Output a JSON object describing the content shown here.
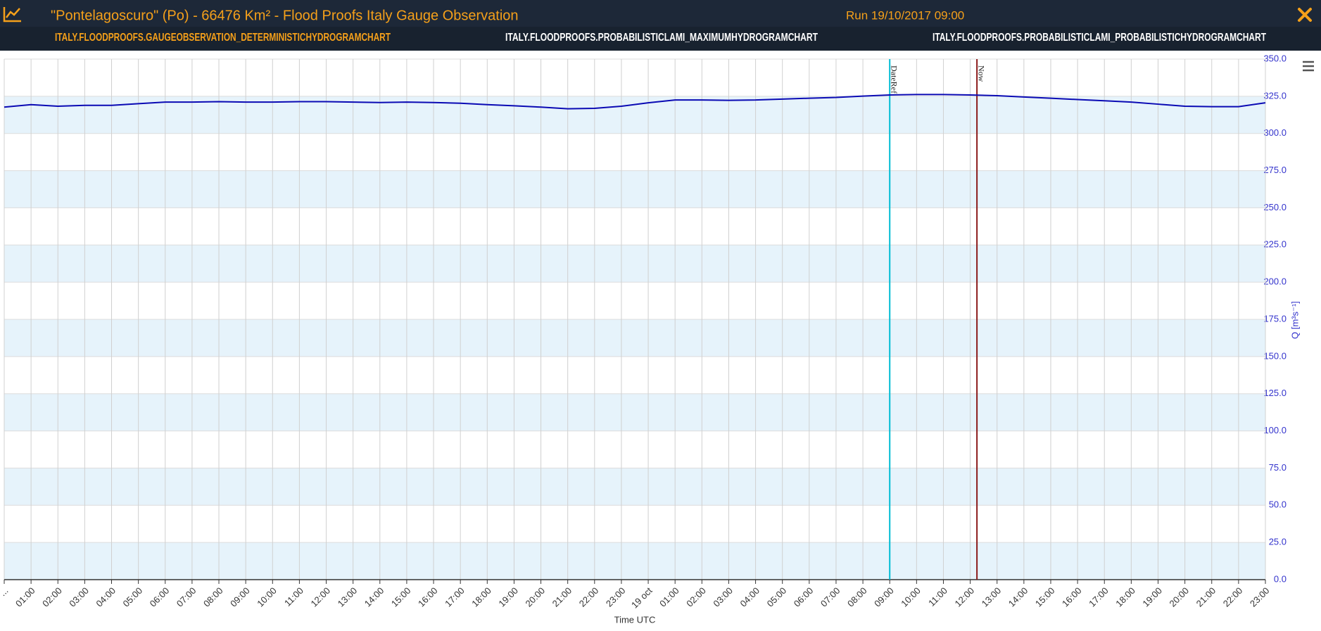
{
  "header": {
    "title": "\"Pontelagoscuro\" (Po) - 66476 Km² - Flood Proofs Italy Gauge Observation",
    "run": "Run 19/10/2017 09:00",
    "tabs": [
      "ITALY.FLOODPROOFS.GAUGEOBSERVATION_DETERMINISTICHYDROGRAMCHART",
      "ITALY.FLOODPROOFS.PROBABILISTICLAMI_MAXIMUMHYDROGRAMCHART",
      "ITALY.FLOODPROOFS.PROBABILISTICLAMI_PROBABILISTICHYDROGRAMCHART"
    ]
  },
  "chart_data": {
    "type": "line",
    "x_label": "Time UTC",
    "y_label": "Q [m³s⁻¹]",
    "categories": [
      "...",
      "01:00",
      "02:00",
      "03:00",
      "04:00",
      "05:00",
      "06:00",
      "07:00",
      "08:00",
      "09:00",
      "10:00",
      "11:00",
      "12:00",
      "13:00",
      "14:00",
      "15:00",
      "16:00",
      "17:00",
      "18:00",
      "19:00",
      "20:00",
      "21:00",
      "22:00",
      "23:00",
      "19 oct",
      "01:00",
      "02:00",
      "03:00",
      "04:00",
      "05:00",
      "06:00",
      "07:00",
      "08:00",
      "09:00",
      "10:00",
      "11:00",
      "12:00",
      "13:00",
      "14:00",
      "15:00",
      "16:00",
      "17:00",
      "18:00",
      "19:00",
      "20:00",
      "21:00",
      "22:00",
      "23:00"
    ],
    "values": [
      317.7,
      319.4,
      318.3,
      318.9,
      318.9,
      320.0,
      321.1,
      321.1,
      321.4,
      321.1,
      321.1,
      321.4,
      321.4,
      321.1,
      320.8,
      321.1,
      320.8,
      320.3,
      319.4,
      318.6,
      317.7,
      316.6,
      316.9,
      318.3,
      320.6,
      322.5,
      322.5,
      322.3,
      322.5,
      323.1,
      323.7,
      324.2,
      325.1,
      325.9,
      326.2,
      326.2,
      325.9,
      325.4,
      324.5,
      323.7,
      322.8,
      322.0,
      321.1,
      319.7,
      318.3,
      318.0,
      318.0,
      320.6
    ],
    "color": "#0a0ab4",
    "ylim": [
      0,
      350
    ],
    "yticks": [
      {
        "value": 0,
        "label": "0.0"
      },
      {
        "value": 25,
        "label": "25.0"
      },
      {
        "value": 50,
        "label": "50.0"
      },
      {
        "value": 75,
        "label": "75.0"
      },
      {
        "value": 100,
        "label": "100.0"
      },
      {
        "value": 125,
        "label": "125.0"
      },
      {
        "value": 150,
        "label": "150.0"
      },
      {
        "value": 175,
        "label": "175.0"
      },
      {
        "value": 200,
        "label": "200.0"
      },
      {
        "value": 225,
        "label": "225.0"
      },
      {
        "value": 250,
        "label": "250.0"
      },
      {
        "value": 275,
        "label": "275.0"
      },
      {
        "value": 300,
        "label": "300.0"
      },
      {
        "value": 325,
        "label": "325.0"
      },
      {
        "value": 350,
        "label": "350.0"
      }
    ],
    "grid": true,
    "alternate_bands": true,
    "plot_lines": [
      {
        "label": "DateRef",
        "x": 33,
        "color": "#00bcd4"
      },
      {
        "label": "Now",
        "x": 36.25,
        "color": "#8b1a1a"
      }
    ]
  }
}
